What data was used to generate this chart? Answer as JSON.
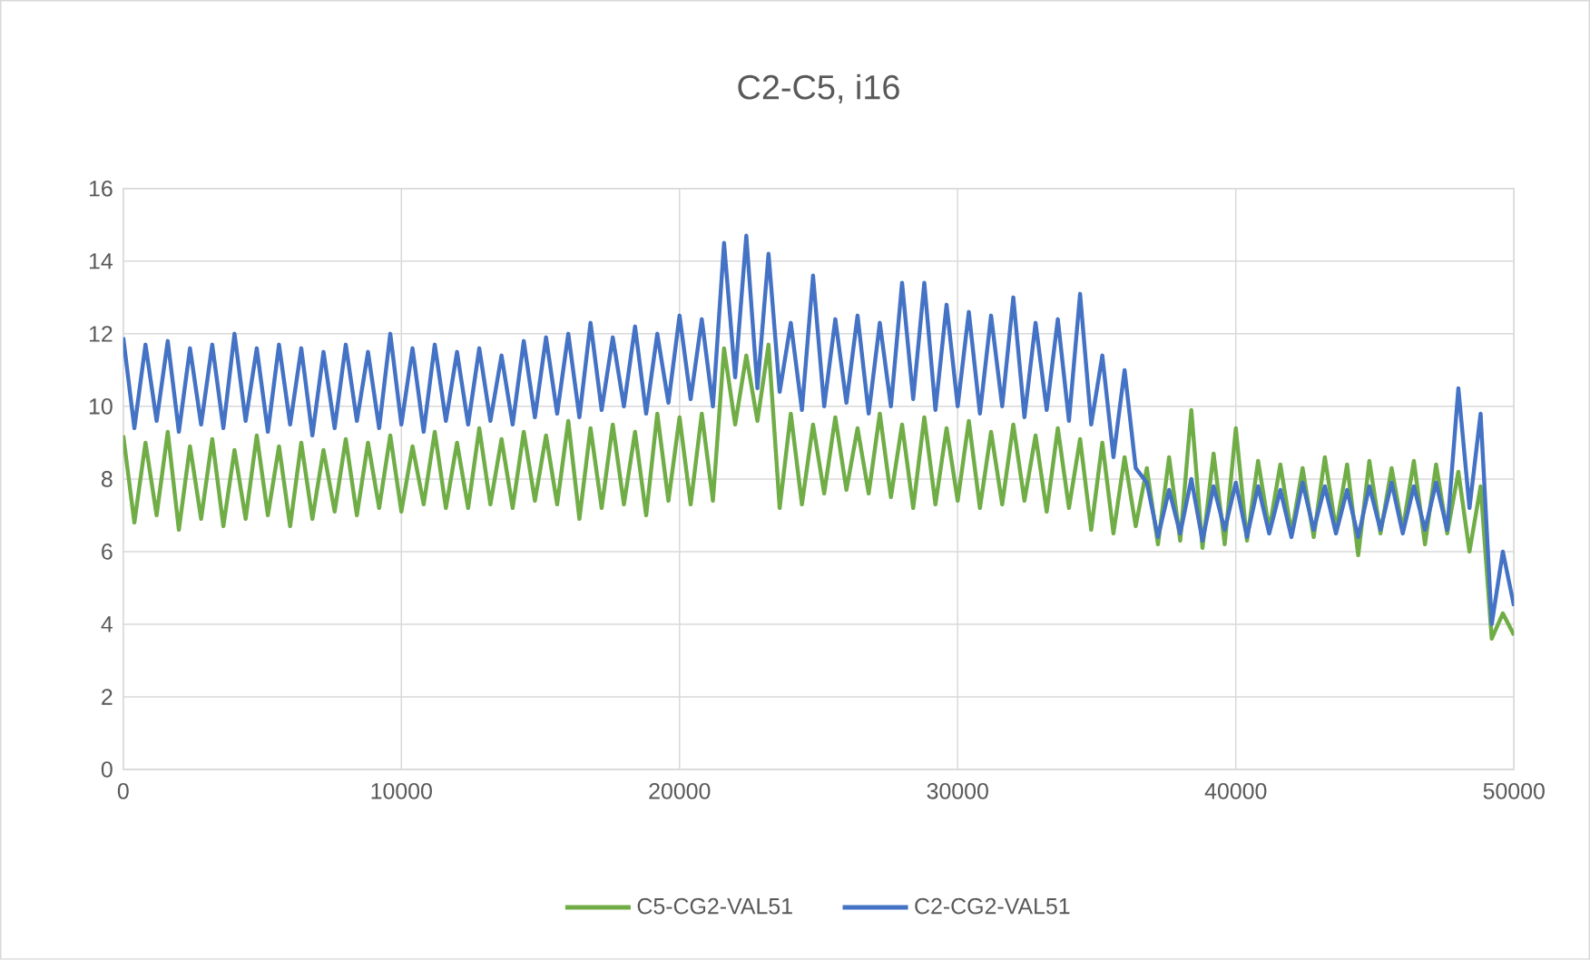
{
  "chart_data": {
    "type": "line",
    "title": "C2-C5, i16",
    "x": [
      0,
      400,
      800,
      1200,
      1600,
      2000,
      2400,
      2800,
      3200,
      3600,
      4000,
      4400,
      4800,
      5200,
      5600,
      6000,
      6400,
      6800,
      7200,
      7600,
      8000,
      8400,
      8800,
      9200,
      9600,
      10000,
      10400,
      10800,
      11200,
      11600,
      12000,
      12400,
      12800,
      13200,
      13600,
      14000,
      14400,
      14800,
      15200,
      15600,
      16000,
      16400,
      16800,
      17200,
      17600,
      18000,
      18400,
      18800,
      19200,
      19600,
      20000,
      20400,
      20800,
      21200,
      21600,
      22000,
      22400,
      22800,
      23200,
      23600,
      24000,
      24400,
      24800,
      25200,
      25600,
      26000,
      26400,
      26800,
      27200,
      27600,
      28000,
      28400,
      28800,
      29200,
      29600,
      30000,
      30400,
      30800,
      31200,
      31600,
      32000,
      32400,
      32800,
      33200,
      33600,
      34000,
      34400,
      34800,
      35200,
      35600,
      36000,
      36400,
      36800,
      37200,
      37600,
      38000,
      38400,
      38800,
      39200,
      39600,
      40000,
      40400,
      40800,
      41200,
      41600,
      42000,
      42400,
      42800,
      43200,
      43600,
      44000,
      44400,
      44800,
      45200,
      45600,
      46000,
      46400,
      46800,
      47200,
      47600,
      48000,
      48400,
      48800,
      49200,
      49600,
      50000
    ],
    "series": [
      {
        "name": "C5-CG2-VAL51",
        "color": "#70ad47",
        "values": [
          9.2,
          6.8,
          9.0,
          7.0,
          9.3,
          6.6,
          8.9,
          6.9,
          9.1,
          6.7,
          8.8,
          6.9,
          9.2,
          7.0,
          8.9,
          6.7,
          9.0,
          6.9,
          8.8,
          7.1,
          9.1,
          7.0,
          9.0,
          7.2,
          9.2,
          7.1,
          8.9,
          7.3,
          9.3,
          7.2,
          9.0,
          7.2,
          9.4,
          7.3,
          9.1,
          7.2,
          9.3,
          7.4,
          9.2,
          7.3,
          9.6,
          6.9,
          9.4,
          7.2,
          9.5,
          7.3,
          9.3,
          7.0,
          9.8,
          7.4,
          9.7,
          7.3,
          9.8,
          7.4,
          11.6,
          9.5,
          11.4,
          9.6,
          11.7,
          7.2,
          9.8,
          7.3,
          9.5,
          7.6,
          9.7,
          7.7,
          9.4,
          7.6,
          9.8,
          7.5,
          9.5,
          7.2,
          9.7,
          7.3,
          9.4,
          7.4,
          9.6,
          7.2,
          9.3,
          7.3,
          9.5,
          7.4,
          9.2,
          7.1,
          9.4,
          7.2,
          9.1,
          6.6,
          9.0,
          6.5,
          8.6,
          6.7,
          8.3,
          6.2,
          8.6,
          6.3,
          9.9,
          6.1,
          8.7,
          6.2,
          9.4,
          6.3,
          8.5,
          6.6,
          8.4,
          6.5,
          8.3,
          6.4,
          8.6,
          6.6,
          8.4,
          5.9,
          8.5,
          6.5,
          8.3,
          6.6,
          8.5,
          6.2,
          8.4,
          6.5,
          8.2,
          6.0,
          7.8,
          3.6,
          4.3,
          3.7
        ]
      },
      {
        "name": "C2-CG2-VAL51",
        "color": "#4472c4",
        "values": [
          11.9,
          9.4,
          11.7,
          9.6,
          11.8,
          9.3,
          11.6,
          9.5,
          11.7,
          9.4,
          12.0,
          9.6,
          11.6,
          9.3,
          11.7,
          9.5,
          11.6,
          9.2,
          11.5,
          9.4,
          11.7,
          9.6,
          11.5,
          9.4,
          12.0,
          9.5,
          11.6,
          9.3,
          11.7,
          9.6,
          11.5,
          9.5,
          11.6,
          9.6,
          11.4,
          9.5,
          11.8,
          9.7,
          11.9,
          9.8,
          12.0,
          9.7,
          12.3,
          9.9,
          11.9,
          10.0,
          12.2,
          9.8,
          12.0,
          10.1,
          12.5,
          10.2,
          12.4,
          10.0,
          14.5,
          10.8,
          14.7,
          10.5,
          14.2,
          10.4,
          12.3,
          9.9,
          13.6,
          10.0,
          12.4,
          10.1,
          12.5,
          9.8,
          12.3,
          10.0,
          13.4,
          10.2,
          13.4,
          9.9,
          12.8,
          10.0,
          12.6,
          9.8,
          12.5,
          10.0,
          13.0,
          9.7,
          12.3,
          9.9,
          12.4,
          9.6,
          13.1,
          9.5,
          11.4,
          8.6,
          11.0,
          8.3,
          7.9,
          6.4,
          7.7,
          6.5,
          8.0,
          6.3,
          7.8,
          6.6,
          7.9,
          6.4,
          7.8,
          6.5,
          7.7,
          6.4,
          7.9,
          6.6,
          7.8,
          6.5,
          7.7,
          6.4,
          7.8,
          6.6,
          7.9,
          6.5,
          7.8,
          6.6,
          7.9,
          6.6,
          10.5,
          7.2,
          9.8,
          4.0,
          6.0,
          4.5
        ]
      }
    ],
    "xlim": [
      0,
      50000
    ],
    "xticks": [
      0,
      10000,
      20000,
      30000,
      40000,
      50000
    ],
    "ylim": [
      0,
      16
    ],
    "yticks": [
      0,
      2,
      4,
      6,
      8,
      10,
      12,
      14,
      16
    ],
    "grid": true,
    "legend": "bottom"
  }
}
